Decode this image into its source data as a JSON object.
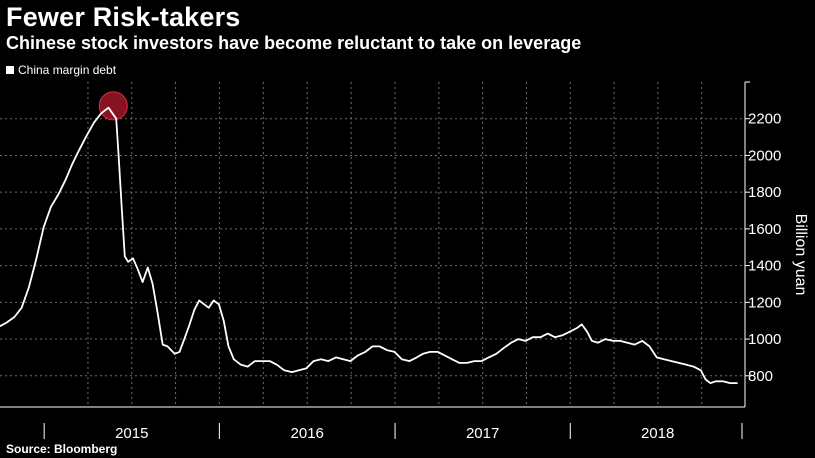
{
  "header": {
    "title": "Fewer Risk-takers",
    "subtitle": "Chinese stock investors have become reluctant to take on leverage"
  },
  "footer": {
    "source": "Source: Bloomberg"
  },
  "colors": {
    "background": "#000000",
    "line": "#ffffff",
    "grid": "#6e6e6e",
    "highlight": "#b3192e"
  },
  "chart_data": {
    "type": "line",
    "title": "Fewer Risk-takers",
    "subtitle": "Chinese stock investors have become reluctant to take on leverage",
    "xlabel": "",
    "ylabel": "Billion yuan",
    "x_tick_labels": [
      "2015",
      "2016",
      "2017",
      "2018"
    ],
    "y_ticks": [
      800,
      1000,
      1200,
      1400,
      1600,
      1800,
      2000,
      2200
    ],
    "ylim": [
      630,
      2400
    ],
    "xlim": [
      "2014-10-01",
      "2018-12-31"
    ],
    "grid": true,
    "legend_position": "top-left",
    "y_axis_side": "right",
    "series": [
      {
        "name": "China margin debt",
        "color": "#ffffff",
        "points": [
          [
            "2014-10-01",
            1070
          ],
          [
            "2014-10-15",
            1090
          ],
          [
            "2014-10-31",
            1120
          ],
          [
            "2014-11-15",
            1170
          ],
          [
            "2014-11-30",
            1280
          ],
          [
            "2014-12-15",
            1430
          ],
          [
            "2014-12-31",
            1610
          ],
          [
            "2015-01-15",
            1720
          ],
          [
            "2015-01-31",
            1790
          ],
          [
            "2015-02-15",
            1870
          ],
          [
            "2015-02-28",
            1950
          ],
          [
            "2015-03-15",
            2030
          ],
          [
            "2015-03-31",
            2110
          ],
          [
            "2015-04-15",
            2180
          ],
          [
            "2015-04-30",
            2230
          ],
          [
            "2015-05-15",
            2260
          ],
          [
            "2015-05-31",
            2200
          ],
          [
            "2015-06-05",
            2000
          ],
          [
            "2015-06-12",
            1700
          ],
          [
            "2015-06-18",
            1450
          ],
          [
            "2015-06-25",
            1420
          ],
          [
            "2015-07-05",
            1440
          ],
          [
            "2015-07-15",
            1380
          ],
          [
            "2015-07-25",
            1310
          ],
          [
            "2015-08-05",
            1390
          ],
          [
            "2015-08-15",
            1300
          ],
          [
            "2015-08-25",
            1150
          ],
          [
            "2015-09-05",
            970
          ],
          [
            "2015-09-15",
            960
          ],
          [
            "2015-09-30",
            920
          ],
          [
            "2015-10-10",
            930
          ],
          [
            "2015-10-20",
            1000
          ],
          [
            "2015-10-31",
            1080
          ],
          [
            "2015-11-10",
            1160
          ],
          [
            "2015-11-20",
            1210
          ],
          [
            "2015-11-30",
            1190
          ],
          [
            "2015-12-10",
            1170
          ],
          [
            "2015-12-20",
            1210
          ],
          [
            "2015-12-31",
            1190
          ],
          [
            "2016-01-10",
            1100
          ],
          [
            "2016-01-20",
            960
          ],
          [
            "2016-01-31",
            890
          ],
          [
            "2016-02-15",
            860
          ],
          [
            "2016-02-29",
            850
          ],
          [
            "2016-03-15",
            880
          ],
          [
            "2016-03-31",
            880
          ],
          [
            "2016-04-15",
            880
          ],
          [
            "2016-04-30",
            860
          ],
          [
            "2016-05-15",
            830
          ],
          [
            "2016-05-31",
            820
          ],
          [
            "2016-06-15",
            830
          ],
          [
            "2016-06-30",
            840
          ],
          [
            "2016-07-15",
            880
          ],
          [
            "2016-07-31",
            890
          ],
          [
            "2016-08-15",
            880
          ],
          [
            "2016-08-31",
            900
          ],
          [
            "2016-09-15",
            890
          ],
          [
            "2016-09-30",
            880
          ],
          [
            "2016-10-15",
            910
          ],
          [
            "2016-10-31",
            930
          ],
          [
            "2016-11-15",
            960
          ],
          [
            "2016-11-30",
            960
          ],
          [
            "2016-12-15",
            940
          ],
          [
            "2016-12-31",
            930
          ],
          [
            "2017-01-15",
            890
          ],
          [
            "2017-01-31",
            880
          ],
          [
            "2017-02-15",
            900
          ],
          [
            "2017-02-28",
            920
          ],
          [
            "2017-03-15",
            930
          ],
          [
            "2017-03-31",
            930
          ],
          [
            "2017-04-15",
            910
          ],
          [
            "2017-04-30",
            890
          ],
          [
            "2017-05-15",
            870
          ],
          [
            "2017-05-31",
            870
          ],
          [
            "2017-06-15",
            880
          ],
          [
            "2017-06-30",
            880
          ],
          [
            "2017-07-15",
            900
          ],
          [
            "2017-07-31",
            920
          ],
          [
            "2017-08-15",
            950
          ],
          [
            "2017-08-31",
            980
          ],
          [
            "2017-09-15",
            1000
          ],
          [
            "2017-09-30",
            990
          ],
          [
            "2017-10-15",
            1010
          ],
          [
            "2017-10-31",
            1010
          ],
          [
            "2017-11-15",
            1030
          ],
          [
            "2017-11-30",
            1010
          ],
          [
            "2017-12-15",
            1020
          ],
          [
            "2017-12-31",
            1040
          ],
          [
            "2018-01-15",
            1060
          ],
          [
            "2018-01-25",
            1080
          ],
          [
            "2018-02-05",
            1040
          ],
          [
            "2018-02-15",
            990
          ],
          [
            "2018-02-28",
            980
          ],
          [
            "2018-03-15",
            1000
          ],
          [
            "2018-03-31",
            990
          ],
          [
            "2018-04-15",
            990
          ],
          [
            "2018-04-30",
            980
          ],
          [
            "2018-05-15",
            970
          ],
          [
            "2018-05-31",
            990
          ],
          [
            "2018-06-15",
            960
          ],
          [
            "2018-06-30",
            900
          ],
          [
            "2018-07-15",
            890
          ],
          [
            "2018-07-31",
            880
          ],
          [
            "2018-08-15",
            870
          ],
          [
            "2018-08-31",
            860
          ],
          [
            "2018-09-15",
            850
          ],
          [
            "2018-09-30",
            830
          ],
          [
            "2018-10-10",
            780
          ],
          [
            "2018-10-20",
            760
          ],
          [
            "2018-10-31",
            770
          ],
          [
            "2018-11-15",
            770
          ],
          [
            "2018-11-30",
            760
          ],
          [
            "2018-12-15",
            760
          ]
        ]
      }
    ],
    "annotations": [
      {
        "type": "peak-marker",
        "x": "2015-05-25",
        "y": 2270
      }
    ]
  }
}
